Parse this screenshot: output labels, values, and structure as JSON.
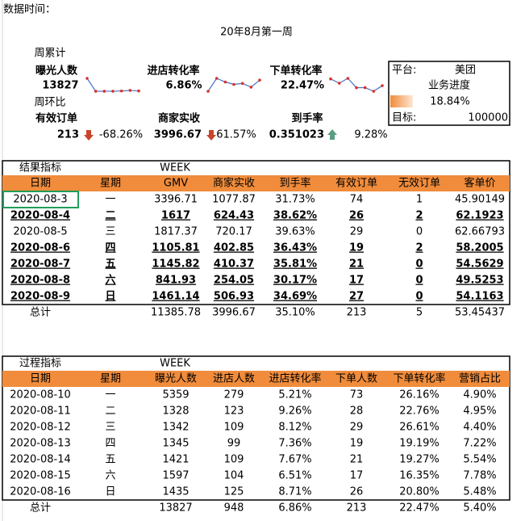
{
  "header": {
    "label": "数据时间：",
    "title": "20年8月第一周"
  },
  "summary": {
    "weekly_label": "周累计",
    "metrics": [
      {
        "label": "曝光人数",
        "value": "13827"
      },
      {
        "label": "进店转化率",
        "value": "6.86%"
      },
      {
        "label": "下单转化率",
        "value": "22.47%"
      }
    ],
    "wow_label": "周环比",
    "compare": [
      {
        "label": "有效订单",
        "value": "213",
        "change": "-68.26%"
      },
      {
        "label": "商家实收",
        "value": "3996.67",
        "change": "61.57%"
      },
      {
        "label": "到手率",
        "value": "0.351023",
        "change": "9.28%"
      }
    ],
    "platform_box": {
      "platform_label": "平台:",
      "platform": "美团",
      "progress_label": "业务进度",
      "progress": "18.84%",
      "target_label": "目标:",
      "target": "100000"
    }
  },
  "result_table": {
    "section_label": "结果指标",
    "week_label": "WEEK",
    "headers": [
      "日期",
      "星期",
      "GMV",
      "商家实收",
      "到手率",
      "有效订单",
      "无效订单",
      "客单价"
    ],
    "rows": [
      [
        "2020-08-3",
        "一",
        "3396.71",
        "1077.87",
        "31.73%",
        "74",
        "1",
        "45.90149"
      ],
      [
        "2020-08-4",
        "二",
        "1617",
        "624.43",
        "38.62%",
        "26",
        "2",
        "62.1923"
      ],
      [
        "2020-08-5",
        "三",
        "1817.37",
        "720.17",
        "39.63%",
        "29",
        "0",
        "62.66793"
      ],
      [
        "2020-08-6",
        "四",
        "1105.81",
        "402.85",
        "36.43%",
        "19",
        "2",
        "58.2005"
      ],
      [
        "2020-08-7",
        "五",
        "1145.82",
        "410.37",
        "35.81%",
        "21",
        "0",
        "54.5629"
      ],
      [
        "2020-08-8",
        "六",
        "841.93",
        "254.05",
        "30.17%",
        "17",
        "0",
        "49.5253"
      ],
      [
        "2020-08-9",
        "日",
        "1461.14",
        "506.93",
        "34.69%",
        "27",
        "0",
        "54.1163"
      ]
    ],
    "bold_rows": [
      1,
      3,
      4,
      5,
      6
    ],
    "total": [
      "总计",
      null,
      "11385.78",
      "3996.67",
      "35.10%",
      "213",
      "5",
      "53.45437"
    ]
  },
  "process_table": {
    "section_label": "过程指标",
    "week_label": "WEEK",
    "headers": [
      "日期",
      "星期",
      "曝光人数",
      "进店人数",
      "进店转化率",
      "下单人数",
      "下单转化率",
      "营销占比"
    ],
    "rows": [
      [
        "2020-08-10",
        "一",
        "5359",
        "279",
        "5.21%",
        "73",
        "26.16%",
        "4.90%"
      ],
      [
        "2020-08-11",
        "二",
        "1328",
        "123",
        "9.26%",
        "28",
        "22.76%",
        "4.95%"
      ],
      [
        "2020-08-12",
        "三",
        "1342",
        "109",
        "8.12%",
        "29",
        "26.61%",
        "4.40%"
      ],
      [
        "2020-08-13",
        "四",
        "1345",
        "99",
        "7.36%",
        "19",
        "19.19%",
        "7.22%"
      ],
      [
        "2020-08-14",
        "五",
        "1421",
        "109",
        "7.67%",
        "21",
        "19.27%",
        "5.54%"
      ],
      [
        "2020-08-15",
        "六",
        "1597",
        "104",
        "6.51%",
        "17",
        "16.35%",
        "7.78%"
      ],
      [
        "2020-08-16",
        "日",
        "1435",
        "125",
        "8.71%",
        "26",
        "20.80%",
        "5.48%"
      ]
    ],
    "bold_rows": [],
    "total": [
      "总计",
      null,
      "13827",
      "948",
      "6.86%",
      "213",
      "22.47%",
      "5.40%"
    ]
  }
}
